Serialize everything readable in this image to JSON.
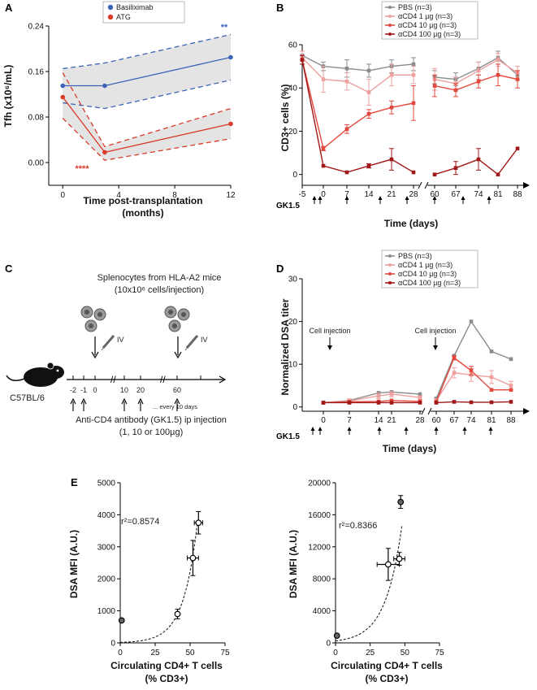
{
  "panels": {
    "A": "A",
    "B": "B",
    "C": "C",
    "D": "D",
    "E": "E"
  },
  "colors": {
    "pbs": "#8c8c8c",
    "cd4_1": "#eda0a0",
    "cd4_10": "#e2483d",
    "cd4_100": "#a01818",
    "basiliximab": "#3d63b8",
    "atg": "#d93b2b",
    "band": "#e4e4e4"
  },
  "chart_data": [
    {
      "id": "A",
      "type": "line",
      "title": "",
      "xlabel": "Time post-transplantation",
      "xlabel2": "(months)",
      "ylabel": "Tfh (x10⁶/mL)",
      "xlim": [
        -1,
        12
      ],
      "ylim": [
        -0.04,
        0.24
      ],
      "xticks": [
        "0",
        "4",
        "8",
        "12"
      ],
      "xtick_values": [
        0,
        4,
        8,
        12
      ],
      "yticks": [
        "0.00",
        "0.08",
        "0.16",
        "0.24"
      ],
      "ytick_values": [
        0,
        0.08,
        0.16,
        0.24
      ],
      "legend": [
        "Basiliximab",
        "ATG"
      ],
      "series": [
        {
          "name": "Basiliximab",
          "x": [
            0,
            3,
            12
          ],
          "values": [
            0.135,
            0.135,
            0.185
          ],
          "upper": [
            0.165,
            0.175,
            0.225
          ],
          "lower": [
            0.105,
            0.095,
            0.145
          ]
        },
        {
          "name": "ATG",
          "x": [
            0,
            3,
            12
          ],
          "values": [
            0.115,
            0.018,
            0.068
          ],
          "upper": [
            0.158,
            0.028,
            0.095
          ],
          "lower": [
            0.078,
            0.004,
            0.042
          ]
        }
      ],
      "annotations": {
        "basiliximab_sig": "**",
        "atg_sig": "****"
      }
    },
    {
      "id": "B",
      "type": "line",
      "ylabel": "CD3+ cells (%)",
      "xlabel": "Time (days)",
      "gk_label": "GK1.5",
      "ylim": [
        -5,
        60
      ],
      "yticks": [
        "0",
        "20",
        "40",
        "60"
      ],
      "ytick_values": [
        0,
        20,
        40,
        60
      ],
      "xticks": [
        "-5",
        "0",
        "7",
        "14",
        "21",
        "28",
        "60",
        "67",
        "74",
        "81",
        "88"
      ],
      "x": [
        -5,
        0,
        7,
        14,
        21,
        28,
        60,
        67,
        74,
        81,
        88
      ],
      "gk_injections": [
        -2,
        -1,
        7,
        17,
        27,
        60,
        70,
        80
      ],
      "legend": [
        "PBS (n=3)",
        "αCD4 1 µg (n=3)",
        "αCD4 10 µg (n=3)",
        "αCD4 100 µg (n=3)"
      ],
      "series": [
        {
          "name": "PBS",
          "values": [
            55,
            50,
            49,
            48,
            50,
            51,
            45,
            44,
            49,
            54,
            46
          ],
          "err": [
            2,
            2,
            4,
            3,
            3,
            3,
            3,
            3,
            3,
            3,
            2
          ]
        },
        {
          "name": "αCD4 1 µg",
          "values": [
            54,
            44,
            43,
            38,
            46,
            46,
            44,
            42,
            48,
            53,
            47
          ],
          "err": [
            3,
            6,
            4,
            6,
            5,
            4,
            5,
            3,
            4,
            3,
            3
          ]
        },
        {
          "name": "αCD4 10 µg",
          "values": [
            53,
            12,
            21,
            28,
            31,
            33,
            41,
            39,
            43,
            46,
            44
          ],
          "err": [
            2,
            1,
            2,
            2,
            3,
            8,
            5,
            3,
            3,
            5,
            4
          ]
        },
        {
          "name": "αCD4 100 µg",
          "values": [
            53,
            4,
            1,
            4,
            7,
            1,
            0,
            3,
            7,
            0,
            12
          ],
          "err": [
            2,
            0,
            0,
            1,
            5,
            0,
            0,
            3,
            5,
            0,
            0
          ]
        }
      ]
    },
    {
      "id": "D",
      "type": "line",
      "ylabel": "Normalized DSA titer",
      "xlabel": "Time (days)",
      "gk_label": "GK1.5",
      "ylim": [
        -1,
        30
      ],
      "yticks": [
        "0",
        "10",
        "20",
        "30"
      ],
      "ytick_values": [
        0,
        10,
        20,
        30
      ],
      "xticks": [
        "0",
        "7",
        "14",
        "21",
        "28",
        "60",
        "67",
        "74",
        "81",
        "88"
      ],
      "x": [
        0,
        7,
        14,
        21,
        28,
        60,
        67,
        74,
        81,
        88
      ],
      "cell_injection_label": "Cell injection",
      "cell_injection_days": [
        0,
        60
      ],
      "gk_injections": [
        -2,
        -1,
        7,
        17,
        27,
        60,
        70,
        80
      ],
      "legend": [
        "PBS (n=3)",
        "αCD4 1 µg (n=3)",
        "αCD4 10 µg (n=3)",
        "αCD4 100 µg (n=3)"
      ],
      "series": [
        {
          "name": "PBS",
          "values": [
            1,
            1.5,
            3.3,
            3.5,
            3,
            2,
            12,
            20,
            13,
            11.2
          ],
          "err": [
            0,
            0,
            0,
            0,
            0,
            0,
            0,
            0,
            0,
            0
          ]
        },
        {
          "name": "αCD4 1 µg",
          "values": [
            1,
            1.4,
            2.6,
            3,
            2.2,
            1.5,
            8,
            7.5,
            7,
            5
          ],
          "err": [
            0,
            0.5,
            0.6,
            0.6,
            0.4,
            0.4,
            1.2,
            1.5,
            1.5,
            1
          ]
        },
        {
          "name": "αCD4 10 µg",
          "values": [
            1,
            1.2,
            1.3,
            1.5,
            1.3,
            1.2,
            11.5,
            8.5,
            4,
            4
          ],
          "err": [
            0,
            0,
            0,
            0,
            0,
            0,
            0.5,
            1,
            0,
            0
          ]
        },
        {
          "name": "αCD4 100 µg",
          "values": [
            1,
            1,
            1,
            1,
            1,
            1,
            1.2,
            1.1,
            1.1,
            1.2
          ],
          "err": [
            0,
            0,
            0,
            0,
            0,
            0,
            0,
            0,
            0,
            0
          ]
        }
      ]
    },
    {
      "id": "E1",
      "type": "scatter",
      "xlabel": "Circulating CD4+ T cells",
      "xlabel2": "(% CD3+)",
      "ylabel": "DSA MFI (A.U.)",
      "xlim": [
        0,
        75
      ],
      "ylim": [
        0,
        5000
      ],
      "xticks": [
        "0",
        "25",
        "50",
        "75"
      ],
      "xtick_values": [
        0,
        25,
        50,
        75
      ],
      "yticks": [
        "0",
        "1000",
        "2000",
        "3000",
        "4000",
        "5000"
      ],
      "ytick_values": [
        0,
        1000,
        2000,
        3000,
        4000,
        5000
      ],
      "r2": "r²=0.8574",
      "points": [
        {
          "x": 1,
          "y": 700,
          "xerr": 0,
          "yerr": 0,
          "fill": "dark"
        },
        {
          "x": 41,
          "y": 900,
          "xerr": 1,
          "yerr": 150,
          "fill": "light"
        },
        {
          "x": 52,
          "y": 2650,
          "xerr": 4,
          "yerr": 550,
          "fill": "light"
        },
        {
          "x": 56,
          "y": 3750,
          "xerr": 3,
          "yerr": 350,
          "fill": "light"
        }
      ],
      "fit": {
        "a": 15,
        "b": 0.1
      }
    },
    {
      "id": "E2",
      "type": "scatter",
      "xlabel": "Circulating CD4+ T cells",
      "xlabel2": "(% CD3+)",
      "ylabel": "DSA MFI (A.U.)",
      "xlim": [
        0,
        75
      ],
      "ylim": [
        0,
        20000
      ],
      "xticks": [
        "0",
        "25",
        "50",
        "75"
      ],
      "xtick_values": [
        0,
        25,
        50,
        75
      ],
      "yticks": [
        "0",
        "4000",
        "8000",
        "12000",
        "16000",
        "20000"
      ],
      "ytick_values": [
        0,
        4000,
        8000,
        12000,
        16000,
        20000
      ],
      "r2": "r²=0.8366",
      "points": [
        {
          "x": 1,
          "y": 900,
          "xerr": 0,
          "yerr": 0,
          "fill": "dark"
        },
        {
          "x": 38,
          "y": 9800,
          "xerr": 8,
          "yerr": 2000,
          "fill": "light"
        },
        {
          "x": 46,
          "y": 10500,
          "xerr": 4,
          "yerr": 800,
          "fill": "light"
        },
        {
          "x": 47,
          "y": 17600,
          "xerr": 0,
          "yerr": 800,
          "fill": "dark"
        }
      ],
      "fit": {
        "a": 250,
        "b": 0.085
      }
    }
  ],
  "panelC": {
    "title": "Splenocytes from HLA-A2 mice",
    "subtitle": "(10x10⁶ cells/injection)",
    "iv_label": "IV",
    "mouse_label": "C57BL/6",
    "timeline_ticks": [
      "-2",
      "-1",
      "0",
      "10",
      "20",
      "60"
    ],
    "every_note": "... every 10 days",
    "antibody_line1": "Anti-CD4 antibody (GK1.5) ip injection",
    "antibody_line2": "(1, 10 or 100µg)"
  }
}
